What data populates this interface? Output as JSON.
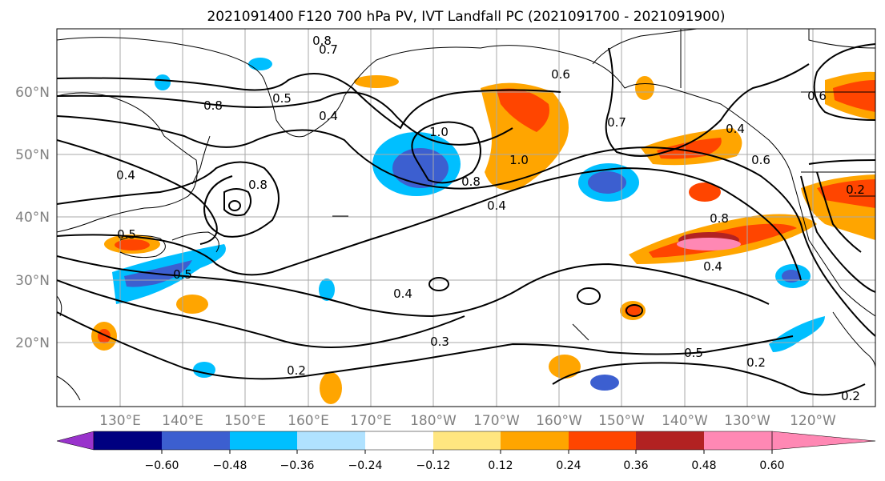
{
  "title": "2021091400 F120 700 hPa PV, IVT Landfall PC (2021091700 - 2021091900)",
  "map": {
    "lat_labels": [
      "60°N",
      "50°N",
      "40°N",
      "30°N",
      "20°N"
    ],
    "lon_labels": [
      "130°E",
      "140°E",
      "150°E",
      "160°E",
      "170°E",
      "180°W",
      "170°W",
      "160°W",
      "150°W",
      "140°W",
      "130°W",
      "120°W"
    ],
    "grid": true,
    "contour_labels": [
      "0.8",
      "0.7",
      "0.6",
      "0.5",
      "0.4",
      "0.8",
      "0.4",
      "1.0",
      "0.8",
      "1.0",
      "0.8",
      "0.4",
      "0.7",
      "0.6",
      "0.4",
      "0.5",
      "0.5",
      "0.6",
      "0.2",
      "0.8",
      "0.4",
      "0.4",
      "0.3",
      "0.2",
      "0.5",
      "0.2",
      "0.2"
    ]
  },
  "colorbar": {
    "tick_labels": [
      "−0.60",
      "−0.48",
      "−0.36",
      "−0.24",
      "−0.12",
      "0.12",
      "0.24",
      "0.36",
      "0.48",
      "0.60"
    ],
    "colors": [
      "#9933cc",
      "#000080",
      "#3c5fd0",
      "#00bfff",
      "#b0e2ff",
      "#ffffff",
      "#ffe680",
      "#ffa500",
      "#ff4500",
      "#b22222",
      "#ff88b4"
    ]
  }
}
